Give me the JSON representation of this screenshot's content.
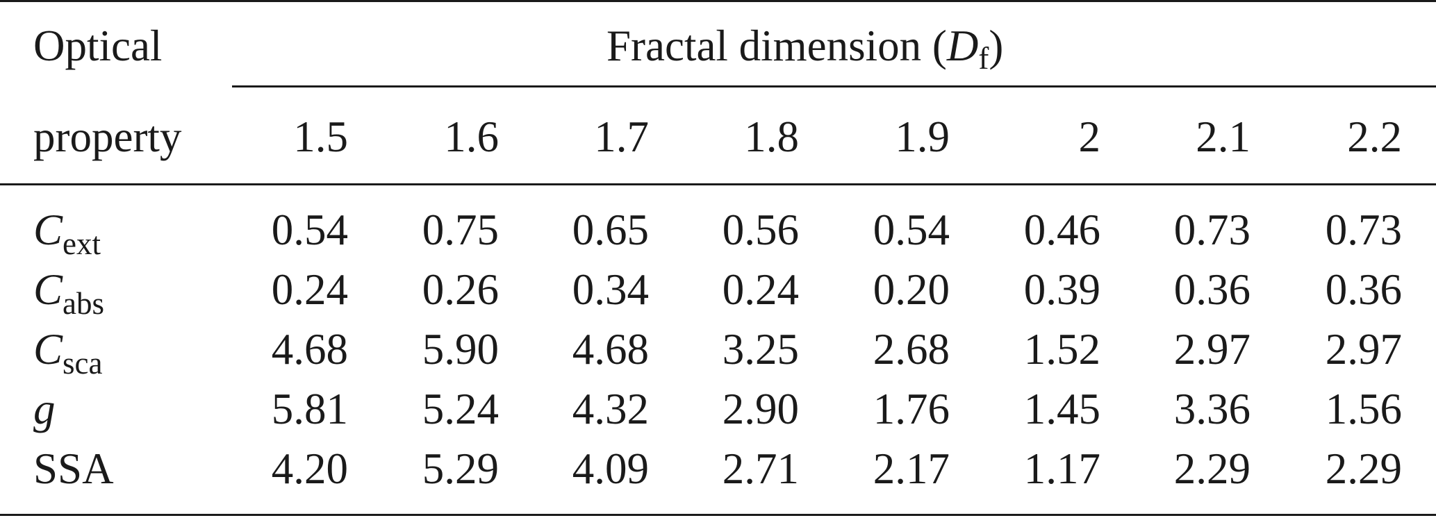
{
  "header": {
    "col0_line1": "Optical",
    "col0_line2": "property",
    "group_label_prefix": "Fractal dimension (",
    "group_symbol": "D",
    "group_symbol_sub": "f",
    "group_label_suffix": ")",
    "df_values": [
      "1.5",
      "1.6",
      "1.7",
      "1.8",
      "1.9",
      "2",
      "2.1",
      "2.2"
    ]
  },
  "rows": [
    {
      "symbol": "C",
      "sub": "ext",
      "values": [
        "0.54",
        "0.75",
        "0.65",
        "0.56",
        "0.54",
        "0.46",
        "0.73",
        "0.73"
      ]
    },
    {
      "symbol": "C",
      "sub": "abs",
      "values": [
        "0.24",
        "0.26",
        "0.34",
        "0.24",
        "0.20",
        "0.39",
        "0.36",
        "0.36"
      ]
    },
    {
      "symbol": "C",
      "sub": "sca",
      "values": [
        "4.68",
        "5.90",
        "4.68",
        "3.25",
        "2.68",
        "1.52",
        "2.97",
        "2.97"
      ]
    },
    {
      "symbol": "g",
      "sub": "",
      "values": [
        "5.81",
        "5.24",
        "4.32",
        "2.90",
        "1.76",
        "1.45",
        "3.36",
        "1.56"
      ]
    },
    {
      "symbol": "",
      "label": "SSA",
      "values": [
        "4.20",
        "5.29",
        "4.09",
        "2.71",
        "2.17",
        "1.17",
        "2.29",
        "2.29"
      ]
    }
  ]
}
